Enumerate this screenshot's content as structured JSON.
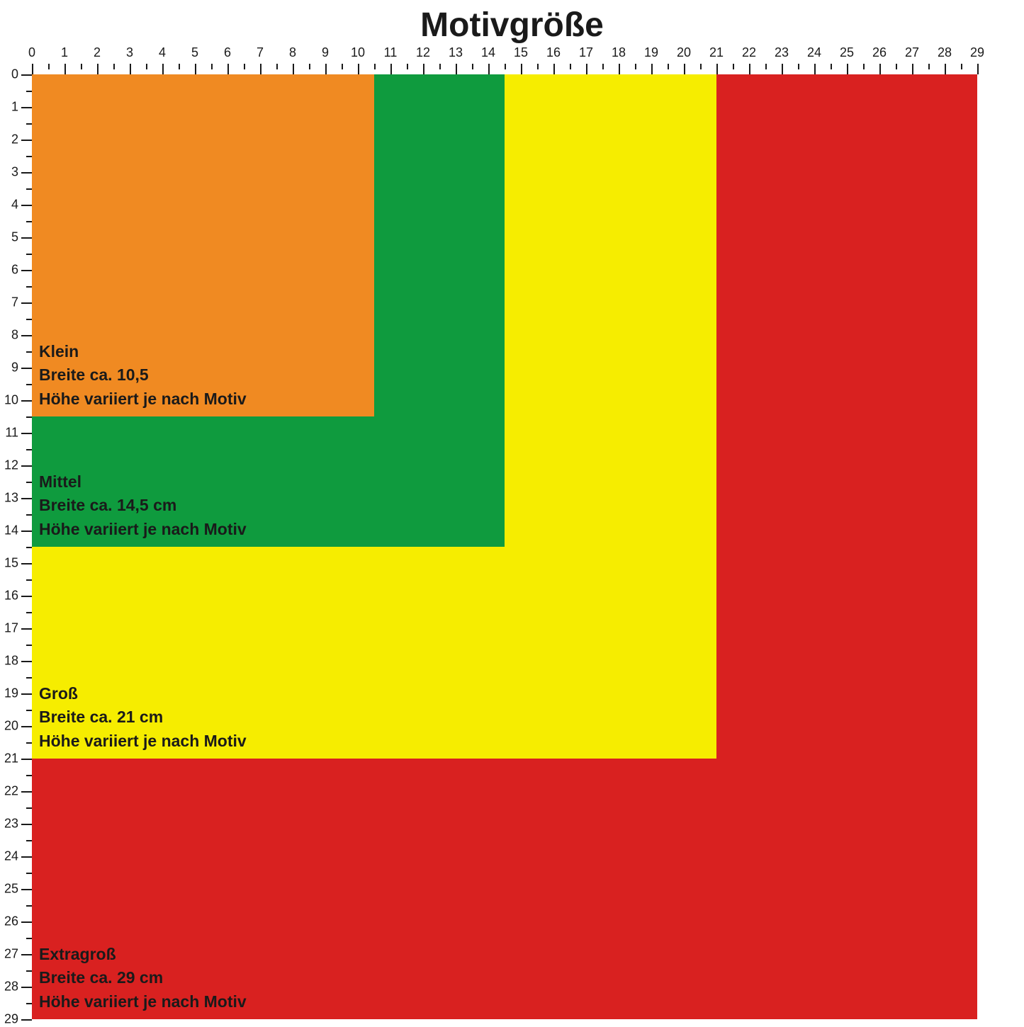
{
  "title": "Motivgröße",
  "ruler": {
    "max": 29,
    "majorStep": 1,
    "pxPerUnit": 46
  },
  "sizes": [
    {
      "name": "Klein",
      "line1": "Klein",
      "line2": "Breite ca. 10,5",
      "line3": "Höhe variiert je nach Motiv",
      "size": 10.5,
      "color": "#f08a22"
    },
    {
      "name": "Mittel",
      "line1": "Mittel",
      "line2": "Breite ca. 14,5 cm",
      "line3": "Höhe variiert je nach Motiv",
      "size": 14.5,
      "color": "#0f9b3e"
    },
    {
      "name": "Groß",
      "line1": "Groß",
      "line2": "Breite ca. 21 cm",
      "line3": "Höhe variiert je nach Motiv",
      "size": 21,
      "color": "#f6ed00"
    },
    {
      "name": "Extragroß",
      "line1": "Extragroß",
      "line2": "Breite ca. 29 cm",
      "line3": "Höhe variiert je nach Motiv",
      "size": 29,
      "color": "#d92120"
    }
  ],
  "background": "#ffffff",
  "textColor": "#1a1a1a",
  "title_fontsize": 48,
  "label_fontsize": 23,
  "ruler_fontsize": 18
}
